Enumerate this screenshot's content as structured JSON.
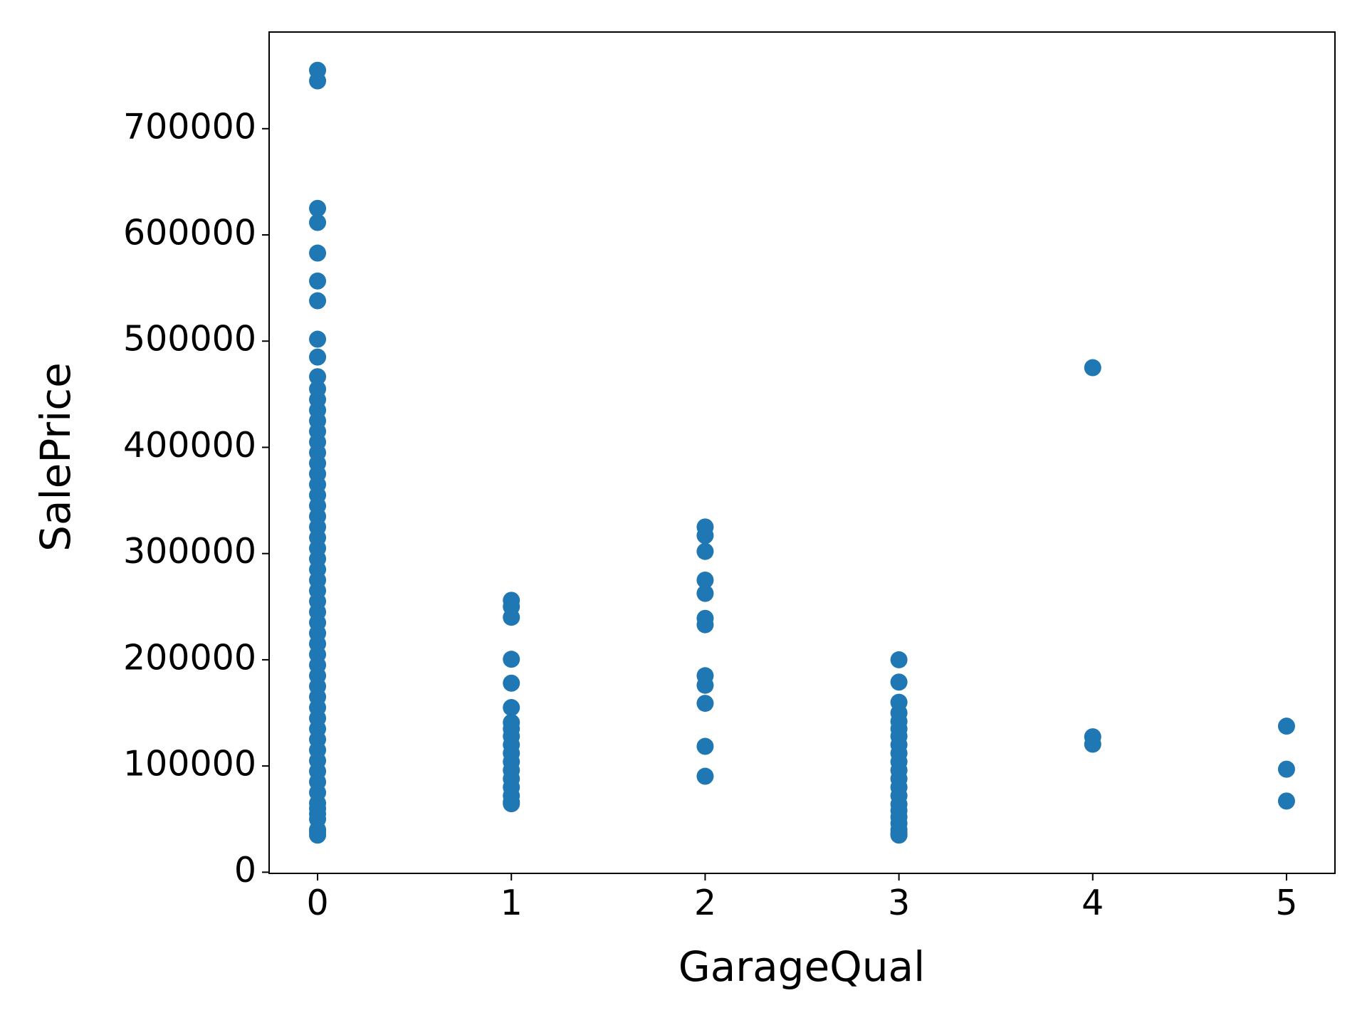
{
  "chart_data": {
    "type": "scatter",
    "x_label": "GarageQual",
    "y_label": "SalePrice",
    "color": "#1f77b4",
    "xlim": [
      -0.25,
      5.25
    ],
    "xticks": [
      0,
      1,
      2,
      3,
      4,
      5
    ],
    "ylim": [
      -1100,
      791000
    ],
    "yticks": [
      0,
      100000,
      200000,
      300000,
      400000,
      500000,
      600000,
      700000
    ],
    "x": [
      0,
      0,
      0,
      0,
      0,
      0,
      0,
      0,
      0,
      0,
      0,
      0,
      0,
      0,
      0,
      0,
      0,
      0,
      0,
      0,
      0,
      0,
      0,
      0,
      0,
      0,
      0,
      0,
      0,
      0,
      0,
      0,
      0,
      0,
      0,
      0,
      0,
      0,
      0,
      0,
      0,
      0,
      0,
      0,
      0,
      0,
      0,
      0,
      0,
      0,
      0,
      0,
      0,
      0,
      0,
      0,
      1,
      1,
      1,
      1,
      1,
      1,
      1,
      1,
      1,
      1,
      1,
      1,
      1,
      1,
      1,
      1,
      1,
      1,
      2,
      2,
      2,
      2,
      2,
      2,
      2,
      2,
      2,
      2,
      2,
      2,
      3,
      3,
      3,
      3,
      3,
      3,
      3,
      3,
      3,
      3,
      3,
      3,
      3,
      3,
      3,
      3,
      3,
      3,
      3,
      3,
      3,
      3,
      4,
      4,
      4,
      5,
      5,
      5
    ],
    "y": [
      755000,
      745000,
      625000,
      611700,
      582900,
      556600,
      538000,
      501800,
      485000,
      466500,
      455000,
      445000,
      435000,
      425000,
      415000,
      405000,
      395000,
      385000,
      375000,
      365000,
      355000,
      345000,
      335000,
      325000,
      315000,
      305000,
      295000,
      285000,
      275000,
      265000,
      255000,
      245000,
      235000,
      225000,
      215000,
      205000,
      195000,
      185000,
      175000,
      165000,
      155000,
      145000,
      135000,
      125000,
      115000,
      105000,
      95000,
      85000,
      75000,
      65000,
      60000,
      55000,
      50000,
      40000,
      37900,
      34900,
      256000,
      250000,
      240000,
      200500,
      178000,
      155000,
      141000,
      135000,
      128000,
      120000,
      112000,
      104000,
      96000,
      88000,
      80000,
      72000,
      66000,
      64500,
      325000,
      317000,
      302000,
      275000,
      262500,
      239000,
      233000,
      185000,
      176000,
      159000,
      118500,
      90350,
      200000,
      179000,
      160000,
      150000,
      142000,
      135000,
      128000,
      120000,
      112000,
      104000,
      96000,
      88000,
      80000,
      72000,
      64000,
      58000,
      52000,
      46000,
      40000,
      37000,
      35300,
      34900,
      475000,
      127500,
      120500,
      137500,
      97000,
      67000
    ]
  }
}
